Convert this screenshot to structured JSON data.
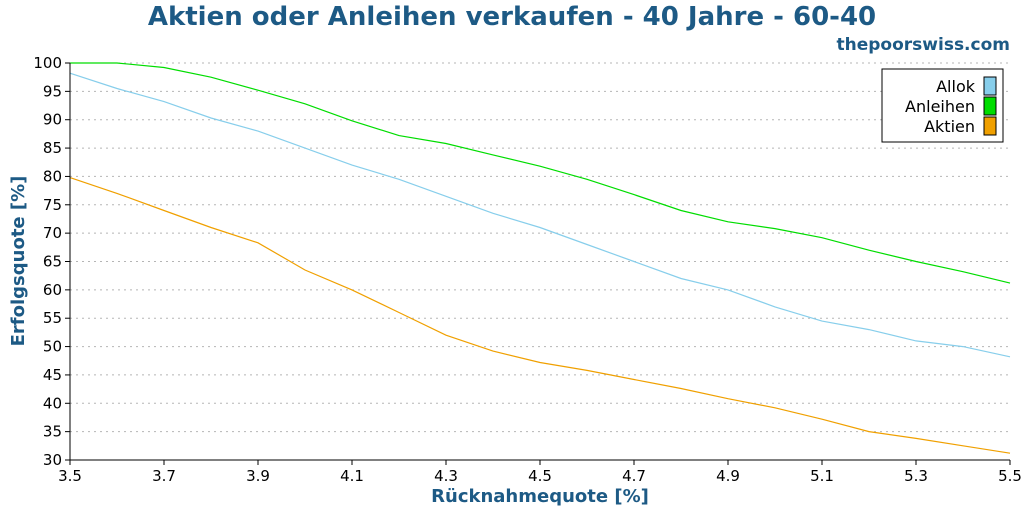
{
  "chart_data": {
    "type": "line",
    "title": "Aktien oder Anleihen verkaufen - 40 Jahre - 60-40",
    "watermark": "thepoorswiss.com",
    "xlabel": "Rücknahmequote [%]",
    "ylabel": "Erfolgsquote [%]",
    "xlim": [
      3.5,
      5.5
    ],
    "ylim": [
      30,
      100
    ],
    "x_ticks": [
      "3.5",
      "3.7",
      "3.9",
      "4.1",
      "4.3",
      "4.5",
      "4.7",
      "4.9",
      "5.1",
      "5.3",
      "5.5"
    ],
    "y_ticks": [
      "30",
      "35",
      "40",
      "45",
      "50",
      "55",
      "60",
      "65",
      "70",
      "75",
      "80",
      "85",
      "90",
      "95",
      "100"
    ],
    "grid": "horizontal-dotted",
    "legend_position": "top-right",
    "x": [
      3.5,
      3.6,
      3.7,
      3.8,
      3.9,
      4.0,
      4.1,
      4.2,
      4.3,
      4.4,
      4.5,
      4.6,
      4.7,
      4.8,
      4.9,
      5.0,
      5.1,
      5.2,
      5.3,
      5.4,
      5.5
    ],
    "series": [
      {
        "name": "Allok",
        "color": "#87ceeb",
        "values": [
          98.2,
          95.5,
          93.2,
          90.3,
          88.0,
          85.0,
          82.0,
          79.5,
          76.5,
          73.5,
          71.0,
          68.0,
          65.0,
          62.0,
          60.0,
          57.0,
          54.5,
          53.0,
          51.0,
          50.0,
          48.2
        ]
      },
      {
        "name": "Anleihen",
        "color": "#00dd00",
        "values": [
          100,
          100,
          99.2,
          97.5,
          95.2,
          92.8,
          89.8,
          87.2,
          85.8,
          83.8,
          81.8,
          79.5,
          76.8,
          74.0,
          72.0,
          70.8,
          69.2,
          67.0,
          65.0,
          63.2,
          61.2
        ]
      },
      {
        "name": "Aktien",
        "color": "#f0a000",
        "values": [
          79.8,
          77.0,
          74.0,
          71.0,
          68.3,
          63.5,
          60.0,
          56.0,
          52.0,
          49.2,
          47.2,
          45.8,
          44.2,
          42.6,
          40.8,
          39.2,
          37.2,
          35.0,
          33.8,
          32.5,
          31.2
        ]
      }
    ]
  }
}
